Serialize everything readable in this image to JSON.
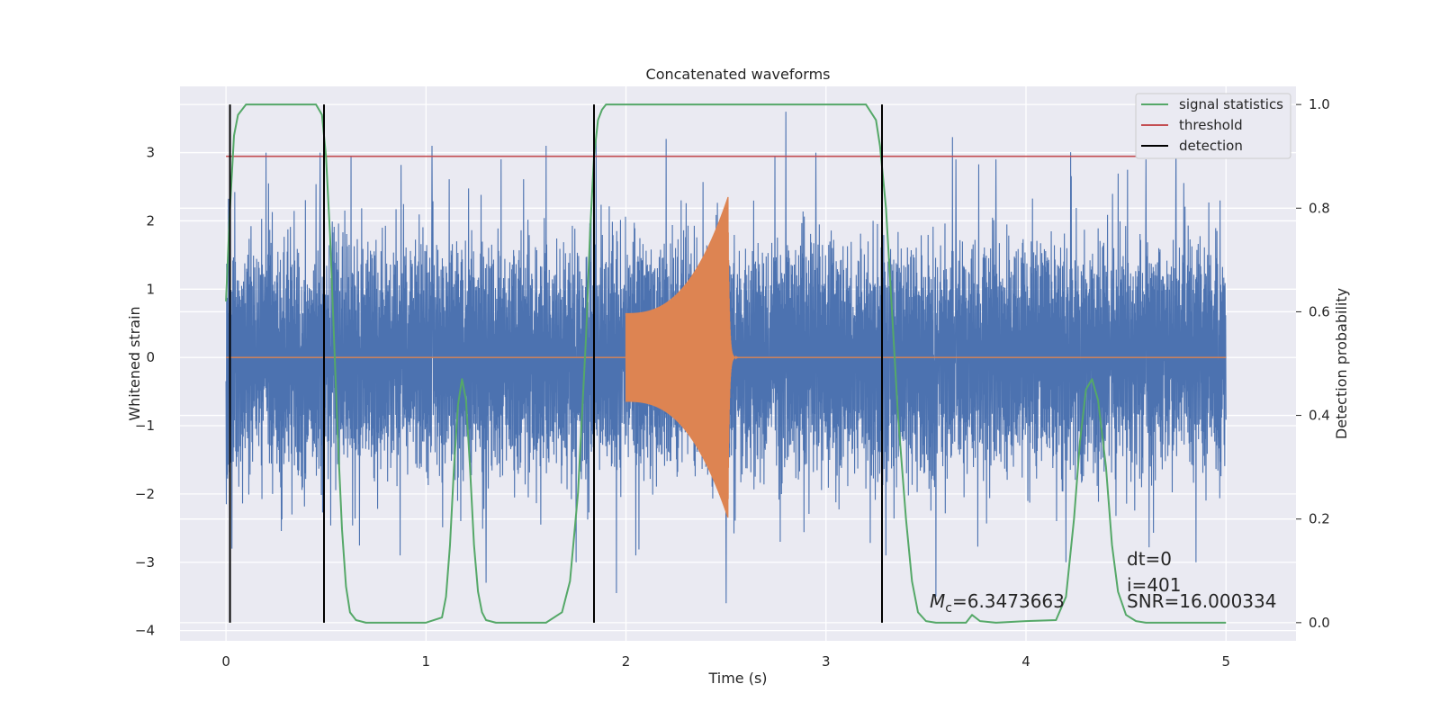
{
  "chart_data": {
    "type": "line",
    "title": "Concatenated waveforms",
    "xlabel": "Time (s)",
    "ylabel": "Whitened strain",
    "y2label": "Detection probability",
    "xlim": [
      -0.23,
      5.35
    ],
    "ylim": [
      -4.15,
      3.97
    ],
    "y2lim": [
      -0.035,
      1.035
    ],
    "xticks": [
      0,
      1,
      2,
      3,
      4,
      5
    ],
    "yticks": [
      -4,
      -3,
      -2,
      -1,
      0,
      1,
      2,
      3
    ],
    "y2ticks": [
      0.0,
      0.2,
      0.4,
      0.6,
      0.8,
      1.0
    ],
    "y2tick_labels": [
      "0.0",
      "0.2",
      "0.4",
      "0.6",
      "0.8",
      "1.0"
    ],
    "grid": true,
    "legend_position": "top-right",
    "legend": [
      "signal statistics",
      "threshold",
      "detection"
    ],
    "colors": {
      "noise": "#4c72b0",
      "chirp": "#dd8452",
      "signal_statistics": "#55a868",
      "threshold": "#c44e52",
      "detection": "#000000",
      "plot_bg": "#eaeaf2",
      "grid": "#ffffff"
    },
    "series": [
      {
        "name": "",
        "role": "whitened noise strain",
        "axis": "left",
        "x_range": [
          0,
          5
        ],
        "envelope": 1.5,
        "peaks": [
          [
            0.02,
            2.1
          ],
          [
            0.03,
            -2.8
          ],
          [
            0.2,
            3.0
          ],
          [
            0.33,
            -2.3
          ],
          [
            0.47,
            3.0
          ],
          [
            0.87,
            -2.9
          ],
          [
            1.03,
            3.1
          ],
          [
            1.3,
            -3.3
          ],
          [
            1.6,
            3.1
          ],
          [
            1.75,
            -3.0
          ],
          [
            1.85,
            3.2
          ],
          [
            2.2,
            3.2
          ],
          [
            2.5,
            -3.6
          ],
          [
            2.8,
            3.6
          ],
          [
            2.95,
            3.0
          ],
          [
            3.3,
            -2.9
          ],
          [
            3.55,
            -3.5
          ],
          [
            3.65,
            2.9
          ],
          [
            3.85,
            2.9
          ],
          [
            4.2,
            -3.0
          ],
          [
            4.6,
            2.9
          ],
          [
            4.75,
            3.2
          ],
          [
            4.85,
            -3.0
          ],
          [
            4.97,
            2.3
          ]
        ]
      },
      {
        "name": "",
        "role": "injected chirp waveform",
        "axis": "left",
        "start": 2.0,
        "merger": 2.51,
        "end": 2.6,
        "start_amplitude": 0.65,
        "peak_amplitude": 2.35
      },
      {
        "name": "signal statistics",
        "axis": "right",
        "x": [
          0.0,
          0.02,
          0.04,
          0.06,
          0.1,
          0.2,
          0.45,
          0.48,
          0.5,
          0.52,
          0.54,
          0.56,
          0.58,
          0.6,
          0.62,
          0.65,
          0.7,
          1.0,
          1.08,
          1.1,
          1.12,
          1.14,
          1.16,
          1.18,
          1.2,
          1.22,
          1.24,
          1.26,
          1.28,
          1.3,
          1.35,
          1.6,
          1.68,
          1.72,
          1.76,
          1.8,
          1.82,
          1.84,
          1.86,
          1.88,
          1.9,
          1.95,
          2.0,
          3.2,
          3.25,
          3.27,
          3.3,
          3.33,
          3.36,
          3.4,
          3.43,
          3.46,
          3.5,
          3.55,
          3.7,
          3.73,
          3.77,
          3.85,
          4.0,
          4.15,
          4.2,
          4.24,
          4.27,
          4.3,
          4.33,
          4.36,
          4.4,
          4.43,
          4.46,
          4.5,
          4.55,
          4.6,
          5.0
        ],
        "y": [
          0.62,
          0.8,
          0.94,
          0.98,
          1.0,
          1.0,
          1.0,
          0.98,
          0.9,
          0.75,
          0.55,
          0.35,
          0.18,
          0.07,
          0.02,
          0.005,
          0.0,
          0.0,
          0.01,
          0.05,
          0.15,
          0.3,
          0.42,
          0.47,
          0.43,
          0.3,
          0.15,
          0.06,
          0.02,
          0.005,
          0.0,
          0.0,
          0.02,
          0.08,
          0.25,
          0.55,
          0.75,
          0.9,
          0.97,
          0.99,
          1.0,
          1.0,
          1.0,
          1.0,
          0.97,
          0.92,
          0.8,
          0.6,
          0.4,
          0.2,
          0.08,
          0.02,
          0.003,
          0.0,
          0.0,
          0.015,
          0.003,
          0.0,
          0.003,
          0.005,
          0.05,
          0.2,
          0.35,
          0.45,
          0.47,
          0.43,
          0.3,
          0.15,
          0.06,
          0.015,
          0.003,
          0.0,
          0.0
        ]
      },
      {
        "name": "threshold",
        "axis": "right",
        "x": [
          0.0,
          5.1
        ],
        "y": [
          0.9,
          0.9
        ]
      },
      {
        "name": "detection",
        "axis": "right",
        "type": "vlines",
        "x": [
          0.02,
          0.49,
          1.84,
          3.28
        ],
        "y_range": [
          0.0,
          1.0
        ]
      }
    ],
    "annotations": [
      {
        "lines": [
          "dt=0",
          "i=401",
          "SNR=16.000334"
        ]
      },
      {
        "symbol": "M",
        "subscript": "c",
        "value": "=6.3473663"
      }
    ]
  }
}
